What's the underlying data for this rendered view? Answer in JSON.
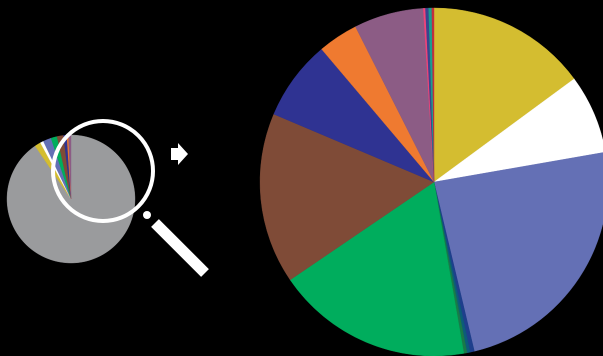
{
  "chart_data": [
    {
      "type": "pie",
      "title": "",
      "slices": [
        {
          "value": 88.0,
          "color": "#9a9b9d"
        },
        {
          "value": 1.5,
          "color": "#d4bd30"
        },
        {
          "value": 0.8,
          "color": "#ffffff"
        },
        {
          "value": 2.0,
          "color": "#6470b5"
        },
        {
          "value": 1.5,
          "color": "#00ad5d"
        },
        {
          "value": 1.6,
          "color": "#7f4b37"
        },
        {
          "value": 0.8,
          "color": "#2f3392"
        },
        {
          "value": 0.4,
          "color": "#ef7a30"
        },
        {
          "value": 0.6,
          "color": "#8c5c85"
        }
      ]
    },
    {
      "type": "pie",
      "title": "",
      "slices": [
        {
          "value": 15.2,
          "color": "#d4bd30"
        },
        {
          "value": 7.5,
          "color": "#ffffff"
        },
        {
          "value": 24.5,
          "color": "#6470b5"
        },
        {
          "value": 0.4,
          "color": "#1e3f8c"
        },
        {
          "value": 0.3,
          "color": "#0c5c7a"
        },
        {
          "value": 0.3,
          "color": "#187a49"
        },
        {
          "value": 18.6,
          "color": "#00ad5d"
        },
        {
          "value": 16.2,
          "color": "#7f4b37"
        },
        {
          "value": 7.6,
          "color": "#2f3392"
        },
        {
          "value": 3.8,
          "color": "#ef7a30"
        },
        {
          "value": 6.6,
          "color": "#8c5c85"
        },
        {
          "value": 0.2,
          "color": "#f0447a"
        },
        {
          "value": 0.3,
          "color": "#39458f"
        },
        {
          "value": 0.3,
          "color": "#1a9e8f"
        },
        {
          "value": 0.2,
          "color": "#c22f3e"
        }
      ]
    }
  ],
  "icons": {
    "magnifier": "magnifying-glass-icon",
    "arrow": "right-arrow-icon"
  }
}
